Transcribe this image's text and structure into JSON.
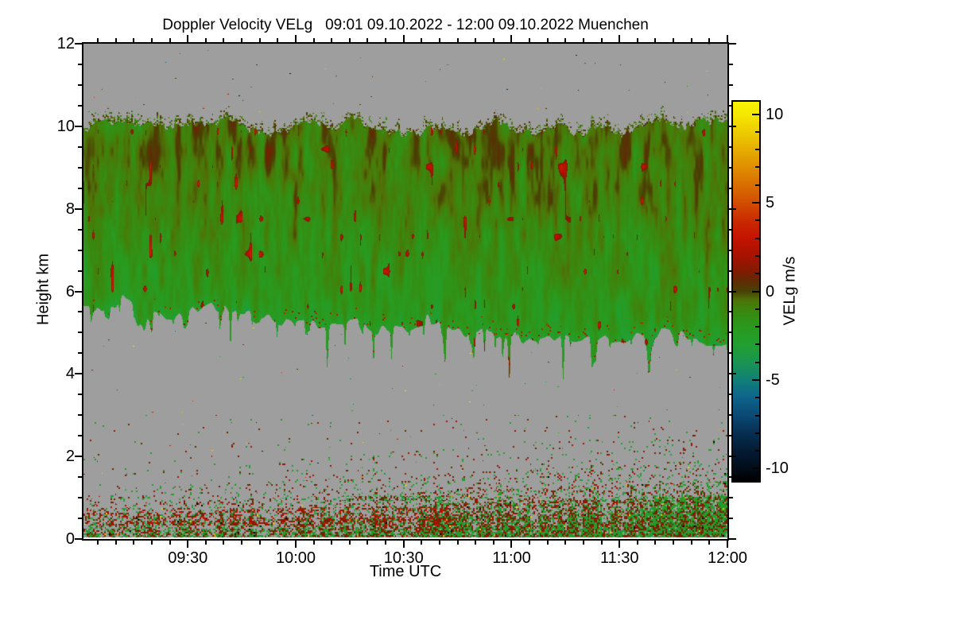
{
  "chart_data": {
    "type": "heatmap",
    "title": "Doppler Velocity VELg   09:01 09.10.2022 - 12:00 09.10.2022 Muenchen",
    "title_parts": {
      "product": "Doppler Velocity VELg",
      "time_start": "09:01 09.10.2022",
      "time_end": "12:00 09.10.2022",
      "station": "Muenchen"
    },
    "xlabel": "Time UTC",
    "ylabel": "Height km",
    "colorbar_label": "VELg m/s",
    "x_axis": {
      "start_label": "09:01",
      "end_label": "12:00",
      "total_minutes": 179,
      "start_minute_of_day": 541,
      "major_ticks": [
        {
          "label": "09:30",
          "minute": 29
        },
        {
          "label": "10:00",
          "minute": 59
        },
        {
          "label": "10:30",
          "minute": 89
        },
        {
          "label": "11:00",
          "minute": 119
        },
        {
          "label": "11:30",
          "minute": 149
        },
        {
          "label": "12:00",
          "minute": 179
        }
      ],
      "minor_tick_every_minutes": 5
    },
    "y_axis": {
      "min": 0,
      "max": 12,
      "major_ticks": [
        0,
        2,
        4,
        6,
        8,
        10,
        12
      ],
      "minor_step": 0.5
    },
    "colorbar": {
      "min": -10.7,
      "max": 10.7,
      "major_ticks": [
        10,
        5,
        0,
        -5,
        -10
      ],
      "minor_step": 1,
      "colormap": [
        [
          -10.7,
          "#000000"
        ],
        [
          -10.0,
          "#020d1a"
        ],
        [
          -9.0,
          "#041c34"
        ],
        [
          -8.0,
          "#072f52"
        ],
        [
          -7.0,
          "#0b4a74"
        ],
        [
          -6.0,
          "#0e648c"
        ],
        [
          -5.0,
          "#128078"
        ],
        [
          -4.0,
          "#1b9552"
        ],
        [
          -3.0,
          "#22a032"
        ],
        [
          -2.0,
          "#2a9a1e"
        ],
        [
          -1.0,
          "#3d860e"
        ],
        [
          -0.5,
          "#4f7408"
        ],
        [
          0.0,
          "#4a4204"
        ],
        [
          0.5,
          "#5c3004"
        ],
        [
          1.0,
          "#7c1e02"
        ],
        [
          2.0,
          "#a81200"
        ],
        [
          3.0,
          "#c41400"
        ],
        [
          4.0,
          "#cb2b00"
        ],
        [
          5.0,
          "#d24e00"
        ],
        [
          6.0,
          "#d96f00"
        ],
        [
          7.0,
          "#e08f00"
        ],
        [
          8.0,
          "#e7ae00"
        ],
        [
          9.0,
          "#eecd00"
        ],
        [
          10.0,
          "#f5e800"
        ],
        [
          10.7,
          "#f8f400"
        ]
      ]
    },
    "field": {
      "no_data_color": "#9e9e9e",
      "bottom_strip_color": "#ffffff",
      "cloud_layer": {
        "top_km": 10.0,
        "top_fringe_km": 0.3,
        "base_km_left": 5.6,
        "base_km_right": 4.9,
        "fall_streak_max_km": 1.55,
        "velocity_top_ms": -0.5,
        "velocity_base_ms": -2.0,
        "streak_amplitude_ms": 1.7,
        "updraft_fleck_ms": 3.0
      },
      "boundary_layer": {
        "dense_top_km": 1.1,
        "sparse_top_km": 2.4,
        "positive_fraction": 0.52,
        "velocity_range_ms": [
          -4,
          5
        ]
      },
      "noise_dots": {
        "count": 330
      }
    }
  }
}
